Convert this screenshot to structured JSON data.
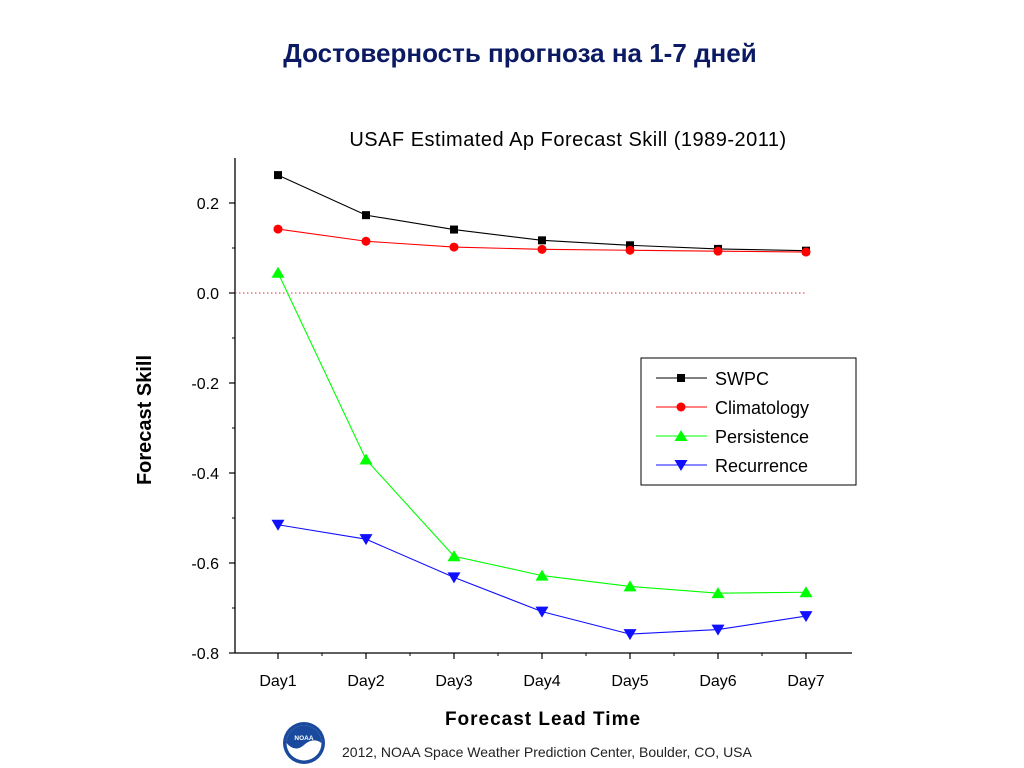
{
  "slide": {
    "title": "Достоверность прогноза на 1-7 дней",
    "footer": "2012, NOAA Space Weather Prediction Center, Boulder, CO, USA",
    "logo_text": "NOAA",
    "logo_icon": "noaa-logo-icon"
  },
  "chart_data": {
    "type": "line",
    "title": "USAF Estimated Ap Forecast Skill (1989-2011)",
    "xlabel": "Forecast Lead Time",
    "ylabel": "Forecast Skill",
    "categories": [
      "Day1",
      "Day2",
      "Day3",
      "Day4",
      "Day5",
      "Day6",
      "Day7"
    ],
    "ylim": [
      -0.8,
      0.3
    ],
    "yticks": [
      0.2,
      0.0,
      -0.2,
      -0.4,
      -0.6,
      -0.8
    ],
    "ytick_labels": [
      "0.2",
      "0.0",
      "-0.2",
      "-0.4",
      "-0.6",
      "-0.8"
    ],
    "reference_line": {
      "y": 0.0,
      "style": "dotted",
      "color": "#e03030"
    },
    "legend_position": "right-middle",
    "grid": false,
    "series": [
      {
        "name": "SWPC",
        "color": "#000000",
        "marker": "square",
        "values": [
          0.262,
          0.173,
          0.141,
          0.117,
          0.106,
          0.098,
          0.094
        ]
      },
      {
        "name": "Climatology",
        "color": "#ff0000",
        "marker": "circle",
        "values": [
          0.142,
          0.115,
          0.102,
          0.097,
          0.095,
          0.093,
          0.091
        ]
      },
      {
        "name": "Persistence",
        "color": "#00ff00",
        "marker": "triangle-up",
        "values": [
          0.045,
          -0.37,
          -0.585,
          -0.628,
          -0.652,
          -0.667,
          -0.665
        ]
      },
      {
        "name": "Recurrence",
        "color": "#1010ff",
        "marker": "triangle-down",
        "values": [
          -0.515,
          -0.547,
          -0.632,
          -0.708,
          -0.758,
          -0.748,
          -0.718
        ]
      }
    ]
  }
}
